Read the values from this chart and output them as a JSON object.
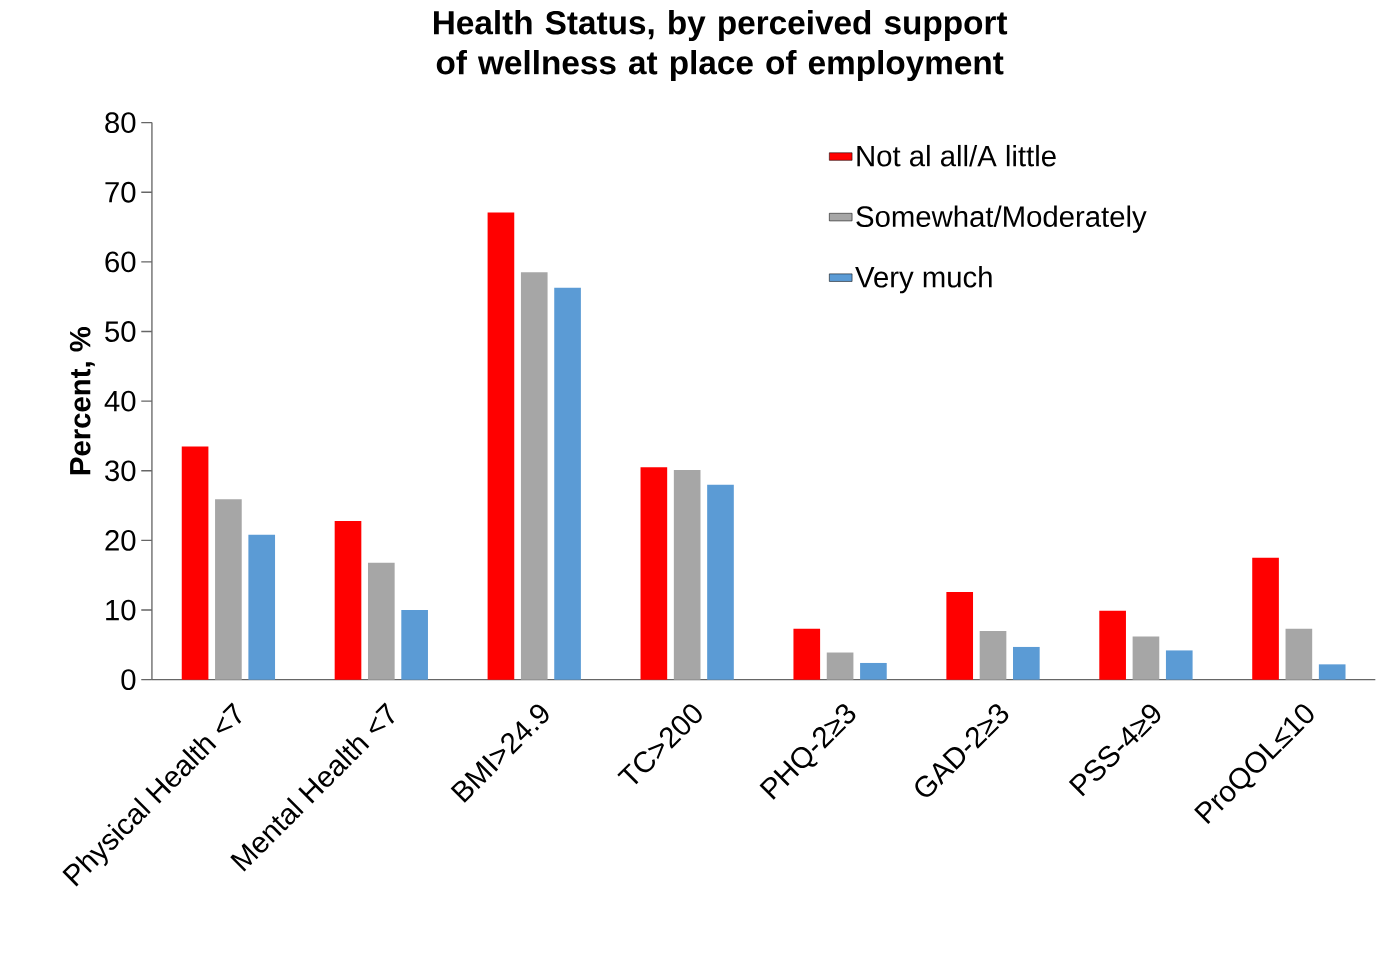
{
  "chart_data": {
    "type": "bar",
    "title": "Health Status, by perceived support of wellness at place of employment",
    "ylabel": "Percent, %",
    "categories": [
      "Physical Health <7",
      "Mental Health <7",
      "BMI>24.9",
      "TC>200",
      "PHQ-2≥3",
      "GAD-2≥3",
      "PSS-4≥9",
      "ProQOL≤10"
    ],
    "series": [
      {
        "name": "Not al all/A little",
        "color": "#ff0000",
        "values": [
          33.5,
          22.8,
          67.1,
          30.5,
          7.3,
          12.6,
          9.9,
          17.5
        ]
      },
      {
        "name": "Somewhat/Moderately",
        "color": "#a6a6a6",
        "values": [
          25.9,
          16.8,
          58.5,
          30.1,
          3.9,
          7.0,
          6.2,
          7.3
        ]
      },
      {
        "name": "Very much",
        "color": "#5b9bd5",
        "values": [
          20.8,
          10.0,
          56.3,
          28.0,
          2.4,
          4.7,
          4.2,
          2.2
        ]
      }
    ],
    "ylim": [
      0,
      80
    ],
    "yticks": [
      0,
      10,
      20,
      30,
      40,
      50,
      60,
      70,
      80
    ],
    "grid": false,
    "legend": "top right"
  }
}
